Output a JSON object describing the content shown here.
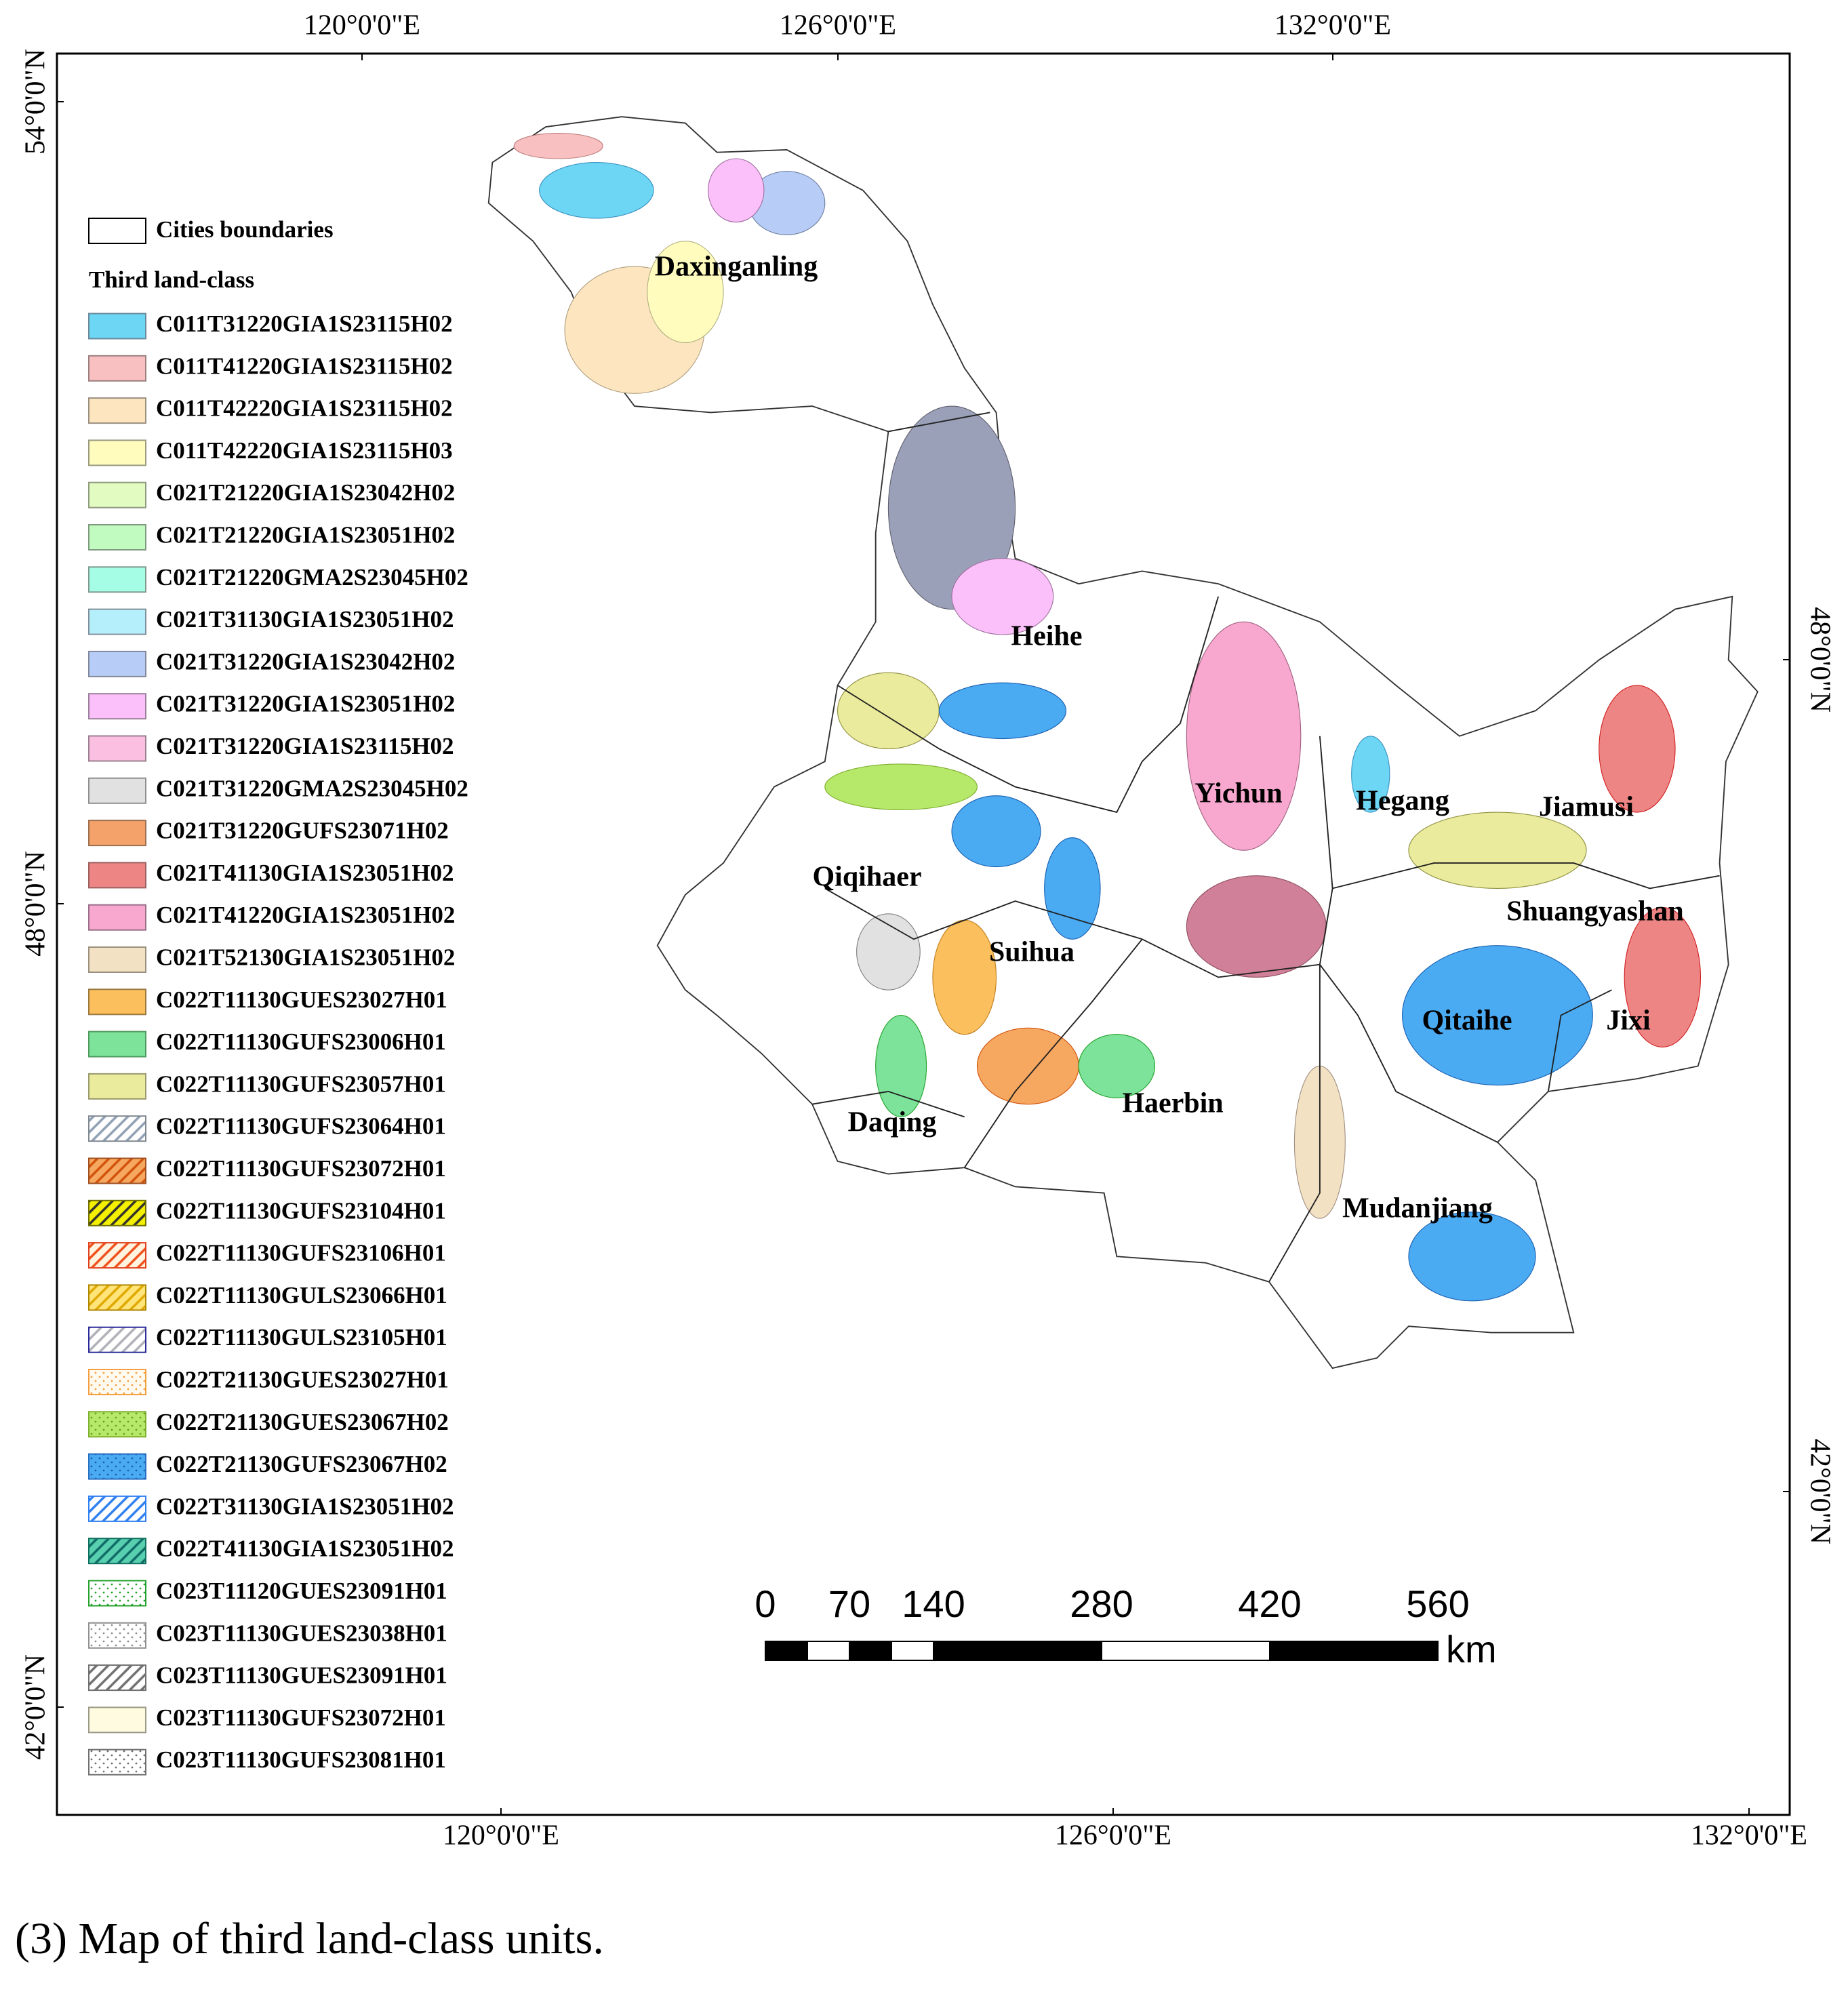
{
  "graticule": {
    "top": [
      "120°0'0\"E",
      "126°0'0\"E",
      "132°0'0\"E"
    ],
    "bottom": [
      "120°0'0\"E",
      "126°0'0\"E",
      "132°0'0\"E"
    ],
    "left": [
      "54°0'0\"N",
      "48°0'0\"N",
      "42°0'0\"N"
    ],
    "right": [
      "48°0'0\"N",
      "42°0'0\"N"
    ]
  },
  "legend": {
    "boundary_label": "Cities boundaries",
    "title": "Third land-class",
    "items": [
      {
        "label": "C011T31220GIA1S23115H02",
        "color": "#6dd6f4",
        "pattern": "solid",
        "border": "#6a8a9a"
      },
      {
        "label": "C011T41220GIA1S23115H02",
        "color": "#f8c0c0",
        "pattern": "solid",
        "border": "#9a8080"
      },
      {
        "label": "C011T42220GIA1S23115H02",
        "color": "#fde5c0",
        "pattern": "solid",
        "border": "#9a9080"
      },
      {
        "label": "C011T42220GIA1S23115H03",
        "color": "#fffcbe",
        "pattern": "solid",
        "border": "#9a9a80"
      },
      {
        "label": "C021T21220GIA1S23042H02",
        "color": "#e2fbc1",
        "pattern": "solid",
        "border": "#909a80"
      },
      {
        "label": "C021T21220GIA1S23051H02",
        "color": "#c2fbc0",
        "pattern": "solid",
        "border": "#809a80"
      },
      {
        "label": "C021T21220GMA2S23045H02",
        "color": "#a4fde4",
        "pattern": "solid",
        "border": "#809a90"
      },
      {
        "label": "C021T31130GIA1S23051H02",
        "color": "#b4effb",
        "pattern": "solid",
        "border": "#80909a"
      },
      {
        "label": "C021T31220GIA1S23042H02",
        "color": "#b7cdf8",
        "pattern": "solid",
        "border": "#80889a"
      },
      {
        "label": "C021T31220GIA1S23051H02",
        "color": "#fbc0f9",
        "pattern": "solid",
        "border": "#9a809a"
      },
      {
        "label": "C021T31220GIA1S23115H02",
        "color": "#fbbfe2",
        "pattern": "solid",
        "border": "#9a8090"
      },
      {
        "label": "C021T31220GMA2S23045H02",
        "color": "#e1e1e1",
        "pattern": "solid",
        "border": "#909090"
      },
      {
        "label": "C021T31220GUFS23071H02",
        "color": "#f4a26a",
        "pattern": "solid",
        "border": "#9a7050"
      },
      {
        "label": "C021T41130GIA1S23051H02",
        "color": "#ee8585",
        "pattern": "solid",
        "border": "#9a6060"
      },
      {
        "label": "C021T41220GIA1S23051H02",
        "color": "#f8a8cf",
        "pattern": "solid",
        "border": "#9a7088"
      },
      {
        "label": "C021T52130GIA1S23051H02",
        "color": "#f3e1c4",
        "pattern": "solid",
        "border": "#9a9080"
      },
      {
        "label": "C022T11130GUES23027H01",
        "color": "#fcbf5d",
        "pattern": "solid",
        "border": "#9a7840"
      },
      {
        "label": "C022T11130GUFS23006H01",
        "color": "#7de39b",
        "pattern": "solid",
        "border": "#509a60"
      },
      {
        "label": "C022T11130GUFS23057H01",
        "color": "#ebeb9e",
        "pattern": "solid",
        "border": "#9a9a70"
      },
      {
        "label": "C022T11130GUFS23064H01",
        "color": "#ffffff",
        "pattern": "hatch",
        "pattern_color": "#8fa0b4",
        "border": "#808890"
      },
      {
        "label": "C022T11130GUFS23072H01",
        "color": "#f6a860",
        "pattern": "hatch",
        "pattern_color": "#d2520c",
        "border": "#a05020"
      },
      {
        "label": "C022T11130GUFS23104H01",
        "color": "#f4f000",
        "pattern": "hatch",
        "pattern_color": "#303030",
        "border": "#707000"
      },
      {
        "label": "C022T11130GUFS23106H01",
        "color": "#fff4e0",
        "pattern": "hatch",
        "pattern_color": "#f0501c",
        "border": "#e0401c"
      },
      {
        "label": "C022T11130GULS23066H01",
        "color": "#ffe47a",
        "pattern": "hatch",
        "pattern_color": "#e0a800",
        "border": "#b08800"
      },
      {
        "label": "C022T11130GULS23105H01",
        "color": "#ffffff",
        "pattern": "hatch",
        "pattern_color": "#b0b0b8",
        "border": "#2a2a9a"
      },
      {
        "label": "C022T21130GUES23027H01",
        "color": "#fffaf0",
        "pattern": "dots",
        "pattern_color": "#f4a040",
        "border": "#f4a040"
      },
      {
        "label": "C022T21130GUES23067H02",
        "color": "#b6e86a",
        "pattern": "dots",
        "pattern_color": "#6aa020",
        "border": "#80b030"
      },
      {
        "label": "C022T21130GUFS23067H02",
        "color": "#4aaaf2",
        "pattern": "dots",
        "pattern_color": "#1a60b0",
        "border": "#2a70c0"
      },
      {
        "label": "C022T31130GIA1S23051H02",
        "color": "#ffffff",
        "pattern": "hatch",
        "pattern_color": "#2f80f0",
        "border": "#2f80f0"
      },
      {
        "label": "C022T41130GIA1S23051H02",
        "color": "#58d0b0",
        "pattern": "hatch",
        "pattern_color": "#106a66",
        "border": "#107060"
      },
      {
        "label": "C023T11120GUES23091H01",
        "color": "#ffffff",
        "pattern": "dots",
        "pattern_color": "#22a22a",
        "border": "#22a22a"
      },
      {
        "label": "C023T11130GUES23038H01",
        "color": "#ffffff",
        "pattern": "dots",
        "pattern_color": "#909090",
        "border": "#909090"
      },
      {
        "label": "C023T11130GUES23091H01",
        "color": "#ffffff",
        "pattern": "hatch",
        "pattern_color": "#707070",
        "border": "#707070"
      },
      {
        "label": "C023T11130GUFS23072H01",
        "color": "#fffbe0",
        "pattern": "solid",
        "border": "#9a9a88"
      },
      {
        "label": "C023T11130GUFS23081H01",
        "color": "#ffffff",
        "pattern": "dots",
        "pattern_color": "#707070",
        "border": "#707070"
      }
    ]
  },
  "cities": [
    "Daxinganling",
    "Heihe",
    "Yichun",
    "Hegang",
    "Jiamusi",
    "Qiqihaer",
    "Shuangyashan",
    "Suihua",
    "Qitaihe",
    "Jixi",
    "Daqing",
    "Haerbin",
    "Mudanjiang"
  ],
  "scale_bar": {
    "ticks": [
      0,
      70,
      140,
      280,
      420,
      560
    ],
    "unit": "km"
  },
  "caption": "(3) Map of third land-class units."
}
